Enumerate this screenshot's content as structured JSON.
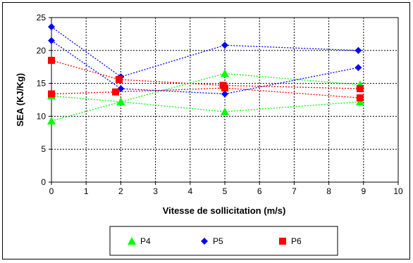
{
  "chart_data": {
    "type": "scatter",
    "title": "",
    "xlabel": "Vitesse de sollicitation (m/s)",
    "ylabel": "SEA (KJ/Kg)",
    "xlim": [
      0,
      10
    ],
    "ylim": [
      0,
      25
    ],
    "x_ticks": [
      "0",
      "1",
      "2",
      "3",
      "4",
      "5",
      "6",
      "7",
      "8",
      "9",
      "10"
    ],
    "y_ticks": [
      "0",
      "5",
      "10",
      "15",
      "20",
      "25"
    ],
    "grid": true,
    "grid_style": "dotted",
    "legend_position": "bottom",
    "series": [
      {
        "name": "P4",
        "marker": "triangle",
        "color": "#00ff00",
        "lines": [
          [
            [
              0.0,
              9.3
            ],
            [
              2.0,
              12.2
            ],
            [
              5.0,
              16.5
            ],
            [
              8.9,
              14.8
            ]
          ],
          [
            [
              0.0,
              13.1
            ],
            [
              2.0,
              12.2
            ],
            [
              5.0,
              10.7
            ],
            [
              8.9,
              12.2
            ]
          ]
        ]
      },
      {
        "name": "P5",
        "marker": "diamond",
        "color": "#0000ff",
        "lines": [
          [
            [
              0.0,
              23.6
            ],
            [
              2.0,
              16.0
            ],
            [
              5.0,
              20.8
            ],
            [
              8.85,
              20.0
            ]
          ],
          [
            [
              0.0,
              21.5
            ],
            [
              2.0,
              14.2
            ],
            [
              5.0,
              13.4
            ],
            [
              8.85,
              17.4
            ]
          ]
        ]
      },
      {
        "name": "P6",
        "marker": "square",
        "color": "#ff0000",
        "lines": [
          [
            [
              0.0,
              18.5
            ],
            [
              1.95,
              15.6
            ],
            [
              4.95,
              14.7
            ],
            [
              8.9,
              14.2
            ]
          ],
          [
            [
              0.0,
              13.4
            ],
            [
              1.85,
              13.7
            ],
            [
              5.0,
              14.3
            ],
            [
              8.9,
              12.8
            ]
          ]
        ]
      }
    ]
  }
}
